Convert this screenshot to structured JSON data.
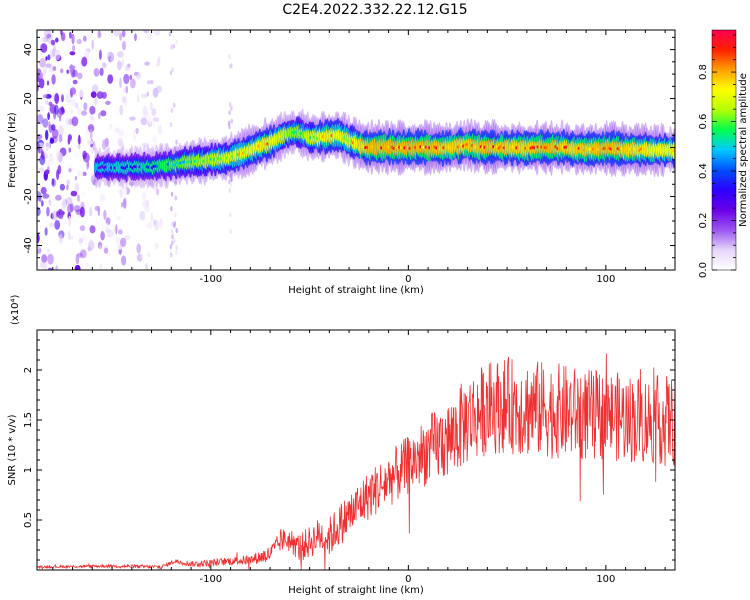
{
  "title": "C2E4.2022.332.22.12.G15",
  "chart_data": [
    {
      "type": "heatmap",
      "xlabel": "Height of straight line (km)",
      "ylabel": "Frequency (Hz)",
      "xlim": [
        -188,
        135
      ],
      "ylim": [
        -50,
        48
      ],
      "x_ticks": [
        -100,
        0,
        100
      ],
      "y_ticks": [
        -40,
        -20,
        0,
        20,
        40
      ],
      "colorbar": {
        "label": "Normalized spectral amplitude",
        "range": [
          0.0,
          0.97
        ],
        "ticks": [
          0.0,
          0.2,
          0.4,
          0.6,
          0.8
        ],
        "colormap": [
          "#ffffff",
          "#e6d6fa",
          "#9a55f0",
          "#6a00e8",
          "#2a00ff",
          "#0050ff",
          "#00c8ff",
          "#00ff50",
          "#b4ff00",
          "#ffff00",
          "#ffa000",
          "#ff2000",
          "#ff0050"
        ]
      },
      "ridge": {
        "x": [
          -155,
          -140,
          -130,
          -120,
          -110,
          -100,
          -90,
          -80,
          -70,
          -60,
          -55,
          -50,
          -45,
          -40,
          -35,
          -30,
          -25,
          -20,
          -10,
          0,
          10,
          20,
          30,
          40,
          50,
          60,
          70,
          80,
          90,
          100,
          110,
          120,
          130
        ],
        "y": [
          -8,
          -8,
          -8,
          -7,
          -6,
          -5,
          -4,
          -1,
          2,
          6,
          6,
          4,
          4,
          5,
          5,
          3,
          1,
          0,
          0,
          0,
          0,
          0,
          1,
          0,
          0,
          0,
          0,
          0,
          -1,
          0,
          -1,
          -1,
          -1
        ],
        "peak_amplitude": [
          0.3,
          0.35,
          0.4,
          0.5,
          0.6,
          0.65,
          0.75,
          0.8,
          0.85,
          0.6,
          0.6,
          0.7,
          0.8,
          0.85,
          0.8,
          0.75,
          0.85,
          0.95,
          0.95,
          0.95,
          0.95,
          0.9,
          0.9,
          0.95,
          0.9,
          0.9,
          0.95,
          0.9,
          0.9,
          0.95,
          0.9,
          0.85,
          0.8
        ]
      },
      "noise_region_x": [
        -188,
        -125
      ]
    },
    {
      "type": "line",
      "xlabel": "Height of straight line (km)",
      "ylabel": "SNR (10 * v/v)",
      "y_multiplier": "(x10⁴)",
      "xlim": [
        -188,
        135
      ],
      "ylim": [
        0,
        2.4
      ],
      "x_ticks": [
        -100,
        0,
        100
      ],
      "y_ticks": [
        0.5,
        1.0,
        1.5,
        2.0
      ],
      "series": [
        {
          "color": "#ee3030",
          "trend_x": [
            -188,
            -150,
            -125,
            -118,
            -110,
            -100,
            -90,
            -80,
            -70,
            -64,
            -60,
            -55,
            -50,
            -45,
            -40,
            -35,
            -30,
            -20,
            -10,
            0,
            10,
            20,
            30,
            40,
            50,
            60,
            70,
            80,
            90,
            100,
            110,
            120,
            130,
            135
          ],
          "trend_y": [
            0.03,
            0.04,
            0.03,
            0.09,
            0.06,
            0.07,
            0.09,
            0.1,
            0.16,
            0.3,
            0.3,
            0.22,
            0.28,
            0.35,
            0.33,
            0.45,
            0.55,
            0.75,
            0.9,
            1.05,
            1.2,
            1.3,
            1.5,
            1.62,
            1.65,
            1.62,
            1.6,
            1.58,
            1.55,
            1.55,
            1.52,
            1.5,
            1.5,
            1.5
          ],
          "noise_amp_x": [
            -188,
            -120,
            -80,
            -40,
            -20,
            0,
            30,
            60,
            100,
            135
          ],
          "noise_amp_y": [
            0.01,
            0.02,
            0.05,
            0.2,
            0.25,
            0.3,
            0.45,
            0.5,
            0.45,
            0.45
          ]
        }
      ]
    }
  ]
}
